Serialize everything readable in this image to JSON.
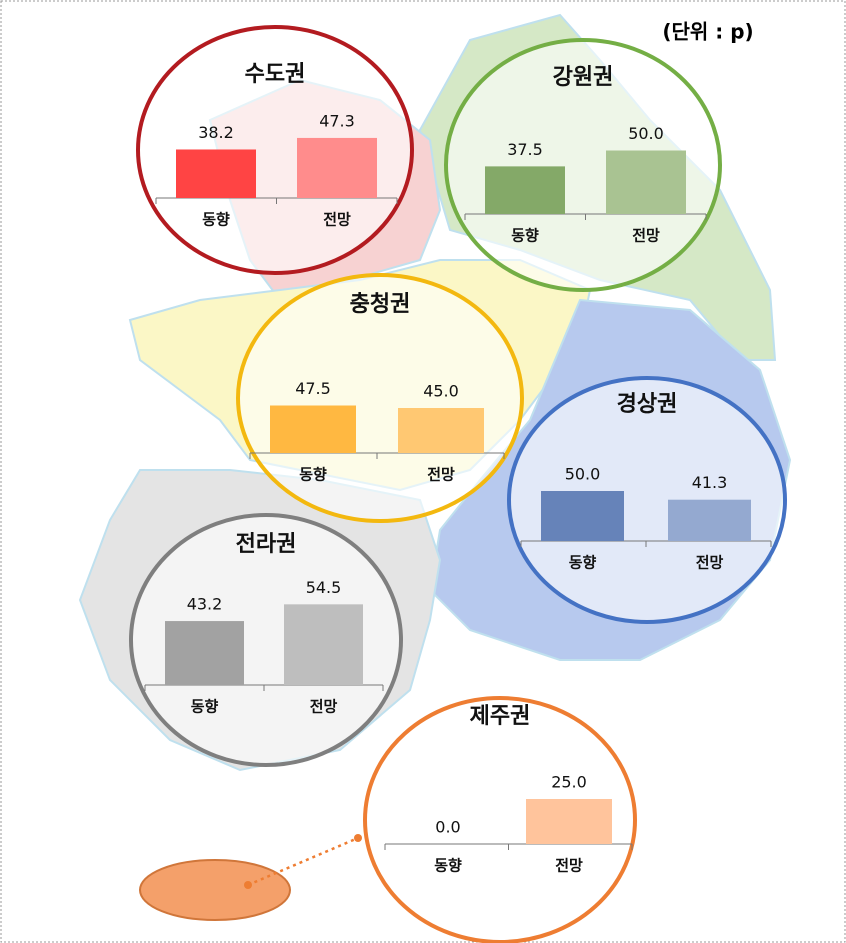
{
  "unit": "(단위 : p)",
  "chart_data": [
    {
      "type": "bar",
      "title": "수도권",
      "categories": [
        "동향",
        "전망"
      ],
      "values": [
        38.2,
        47.3
      ],
      "value_labels": [
        "38.2",
        "47.3"
      ],
      "colors": [
        "#ff4444",
        "#ff8c8c"
      ],
      "border_color": "#b31b20"
    },
    {
      "type": "bar",
      "title": "강원권",
      "categories": [
        "동향",
        "전망"
      ],
      "values": [
        37.5,
        50
      ],
      "value_labels": [
        "37.5",
        "50.0"
      ],
      "colors": [
        "#84a968",
        "#a9c392"
      ],
      "border_color": "#74ae45"
    },
    {
      "type": "bar",
      "title": "충청권",
      "categories": [
        "동향",
        "전망"
      ],
      "values": [
        47.5,
        45
      ],
      "value_labels": [
        "47.5",
        "45.0"
      ],
      "colors": [
        "#ffb841",
        "#ffc872"
      ],
      "border_color": "#f3b80f"
    },
    {
      "type": "bar",
      "title": "경상권",
      "categories": [
        "동향",
        "전망"
      ],
      "values": [
        50,
        41.3
      ],
      "value_labels": [
        "50.0",
        "41.3"
      ],
      "colors": [
        "#6683b9",
        "#94a9d0"
      ],
      "border_color": "#4472c4"
    },
    {
      "type": "bar",
      "title": "전라권",
      "categories": [
        "동향",
        "전망"
      ],
      "values": [
        43.2,
        54.5
      ],
      "value_labels": [
        "43.2",
        "54.5"
      ],
      "colors": [
        "#a2a2a2",
        "#bebebe"
      ],
      "border_color": "#7f7f7f"
    },
    {
      "type": "bar",
      "title": "제주권",
      "categories": [
        "동향",
        "전망"
      ],
      "values": [
        0,
        25
      ],
      "value_labels": [
        "0.0",
        "25.0"
      ],
      "colors": [
        "#ffc49c",
        "#ffc49c"
      ],
      "border_color": "#ee7d32"
    }
  ]
}
